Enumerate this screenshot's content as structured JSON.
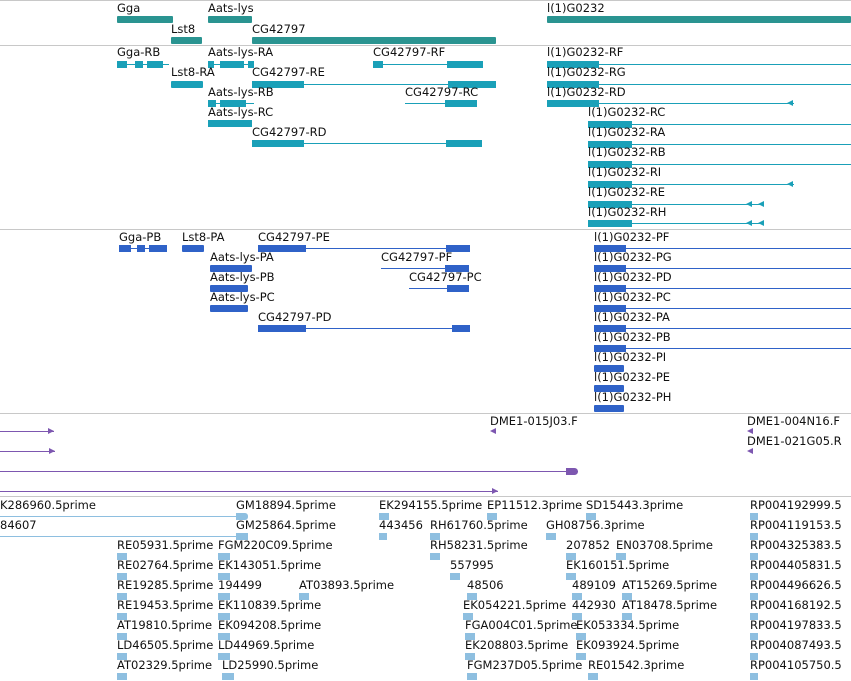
{
  "colors": {
    "gene": "#2a9491",
    "transcript": "#1aa0b8",
    "protein": "#2f62c8",
    "clone": "#7d57b0",
    "est": "#8ebfe0",
    "separator": "#c8c8c8"
  },
  "genes": [
    {
      "label": "Gga"
    },
    {
      "label": "Aats-lys"
    },
    {
      "label": "Lst8"
    },
    {
      "label": "CG42797"
    },
    {
      "label": "l(1)G0232"
    }
  ],
  "transcripts": [
    {
      "label": "Gga-RB"
    },
    {
      "label": "Aats-lys-RA"
    },
    {
      "label": "CG42797-RF"
    },
    {
      "label": "l(1)G0232-RF"
    },
    {
      "label": "Lst8-RA"
    },
    {
      "label": "CG42797-RE"
    },
    {
      "label": "l(1)G0232-RG"
    },
    {
      "label": "Aats-lys-RB"
    },
    {
      "label": "CG42797-RC"
    },
    {
      "label": "l(1)G0232-RD"
    },
    {
      "label": "Aats-lys-RC"
    },
    {
      "label": "l(1)G0232-RC"
    },
    {
      "label": "CG42797-RD"
    },
    {
      "label": "l(1)G0232-RA"
    },
    {
      "label": "l(1)G0232-RB"
    },
    {
      "label": "l(1)G0232-RI"
    },
    {
      "label": "l(1)G0232-RE"
    },
    {
      "label": "l(1)G0232-RH"
    }
  ],
  "proteins": [
    {
      "label": "Gga-PB"
    },
    {
      "label": "Lst8-PA"
    },
    {
      "label": "CG42797-PE"
    },
    {
      "label": "l(1)G0232-PF"
    },
    {
      "label": "Aats-lys-PA"
    },
    {
      "label": "CG42797-PF"
    },
    {
      "label": "l(1)G0232-PG"
    },
    {
      "label": "Aats-lys-PB"
    },
    {
      "label": "CG42797-PC"
    },
    {
      "label": "l(1)G0232-PD"
    },
    {
      "label": "Aats-lys-PC"
    },
    {
      "label": "l(1)G0232-PC"
    },
    {
      "label": "CG42797-PD"
    },
    {
      "label": "l(1)G0232-PA"
    },
    {
      "label": "l(1)G0232-PB"
    },
    {
      "label": "l(1)G0232-PI"
    },
    {
      "label": "l(1)G0232-PE"
    },
    {
      "label": "l(1)G0232-PH"
    }
  ],
  "clones": [
    {
      "label": "DME1-015J03.F"
    },
    {
      "label": "DME1-004N16.F"
    },
    {
      "label": "DME1-021G05.R"
    }
  ],
  "ests": [
    {
      "label": "K286960.5prime"
    },
    {
      "label": "GM18894.5prime"
    },
    {
      "label": "EK294155.5prime"
    },
    {
      "label": "EP11512.3prime"
    },
    {
      "label": "SD15443.3prime"
    },
    {
      "label": "RP004192999.5"
    },
    {
      "label": "84607"
    },
    {
      "label": "GM25864.5prime"
    },
    {
      "label": "443456"
    },
    {
      "label": "RH61760.5prime"
    },
    {
      "label": "GH08756.3prime"
    },
    {
      "label": "RP004119153.5"
    },
    {
      "label": "RE05931.5prime"
    },
    {
      "label": "FGM220C09.5prime"
    },
    {
      "label": "RH58231.5prime"
    },
    {
      "label": "207852"
    },
    {
      "label": "EN03708.5prime"
    },
    {
      "label": "RP004325383.5"
    },
    {
      "label": "RE02764.5prime"
    },
    {
      "label": "EK143051.5prime"
    },
    {
      "label": "557995"
    },
    {
      "label": "EK160151.5prime"
    },
    {
      "label": "RP004405831.5"
    },
    {
      "label": "RE19285.5prime"
    },
    {
      "label": "194499"
    },
    {
      "label": "AT03893.5prime"
    },
    {
      "label": "48506"
    },
    {
      "label": "489109"
    },
    {
      "label": "AT15269.5prime"
    },
    {
      "label": "RP004496626.5"
    },
    {
      "label": "RE19453.5prime"
    },
    {
      "label": "EK110839.5prime"
    },
    {
      "label": "EK054221.5prime"
    },
    {
      "label": "442930"
    },
    {
      "label": "AT18478.5prime"
    },
    {
      "label": "RP004168192.5"
    },
    {
      "label": "AT19810.5prime"
    },
    {
      "label": "EK094208.5prime"
    },
    {
      "label": "FGA004C01.5prime"
    },
    {
      "label": "EK053334.5prime"
    },
    {
      "label": "RP004197833.5"
    },
    {
      "label": "LD46505.5prime"
    },
    {
      "label": "LD44969.5prime"
    },
    {
      "label": "EK208803.5prime"
    },
    {
      "label": "EK093924.5prime"
    },
    {
      "label": "RP004087493.5"
    },
    {
      "label": "AT02329.5prime"
    },
    {
      "label": "LD25990.5prime"
    },
    {
      "label": "FGM237D05.5prime"
    },
    {
      "label": "RE01542.3prime"
    },
    {
      "label": "RP004105750.5"
    }
  ]
}
